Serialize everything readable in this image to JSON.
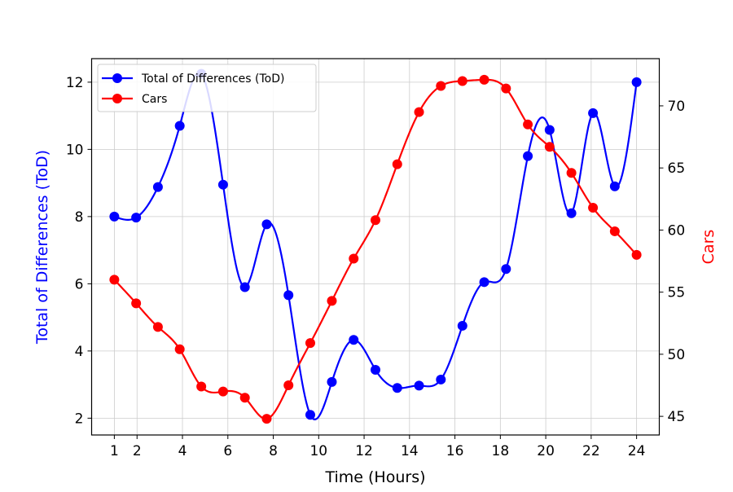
{
  "chart_data": {
    "type": "line",
    "xlabel": "Time (Hours)",
    "ylabel_left": "Total of Differences (ToD)",
    "ylabel_right": "Cars",
    "x_ticks": [
      1,
      2,
      4,
      6,
      8,
      10,
      12,
      14,
      16,
      18,
      20,
      22,
      24
    ],
    "y_left_ticks": [
      2,
      4,
      6,
      8,
      10,
      12
    ],
    "y_right_ticks": [
      45,
      50,
      55,
      60,
      65,
      70
    ],
    "xlim": [
      0.0,
      25.0
    ],
    "ylim_left": [
      1.5,
      12.7
    ],
    "ylim_right": [
      43.5,
      73.8
    ],
    "grid": true,
    "legend_position": "upper-left",
    "colors": {
      "left_axis": "#0000ff",
      "right_axis": "#ff0000"
    },
    "series": [
      {
        "name": "Total of Differences (ToD)",
        "axis": "left",
        "color": "#0000ff",
        "x": [
          1,
          1.96,
          2.92,
          3.88,
          4.83,
          5.79,
          6.75,
          7.71,
          8.67,
          9.63,
          10.58,
          11.54,
          12.5,
          13.46,
          14.42,
          15.38,
          16.33,
          17.29,
          18.25,
          19.21,
          20.17,
          21.13,
          22.08,
          23.04,
          24
        ],
        "values": [
          8.0,
          7.97,
          8.88,
          10.7,
          12.25,
          8.95,
          5.9,
          7.77,
          5.66,
          2.1,
          3.08,
          4.33,
          3.44,
          2.9,
          2.97,
          3.15,
          4.75,
          6.05,
          6.44,
          9.8,
          10.58,
          8.1,
          11.08,
          8.9,
          12.0
        ]
      },
      {
        "name": "Cars",
        "axis": "right",
        "color": "#ff0000",
        "x": [
          1,
          1.96,
          2.92,
          3.88,
          4.83,
          5.79,
          6.75,
          7.71,
          8.67,
          9.63,
          10.58,
          11.54,
          12.5,
          13.46,
          14.42,
          15.38,
          16.33,
          17.29,
          18.25,
          19.21,
          20.17,
          21.13,
          22.08,
          23.04,
          24
        ],
        "values": [
          56.0,
          54.1,
          52.2,
          50.4,
          47.4,
          47.0,
          46.5,
          44.8,
          47.5,
          50.9,
          54.3,
          57.7,
          60.8,
          65.3,
          69.5,
          71.6,
          72.0,
          72.1,
          71.4,
          68.5,
          66.7,
          64.6,
          61.8,
          59.9,
          58.0
        ]
      }
    ]
  }
}
